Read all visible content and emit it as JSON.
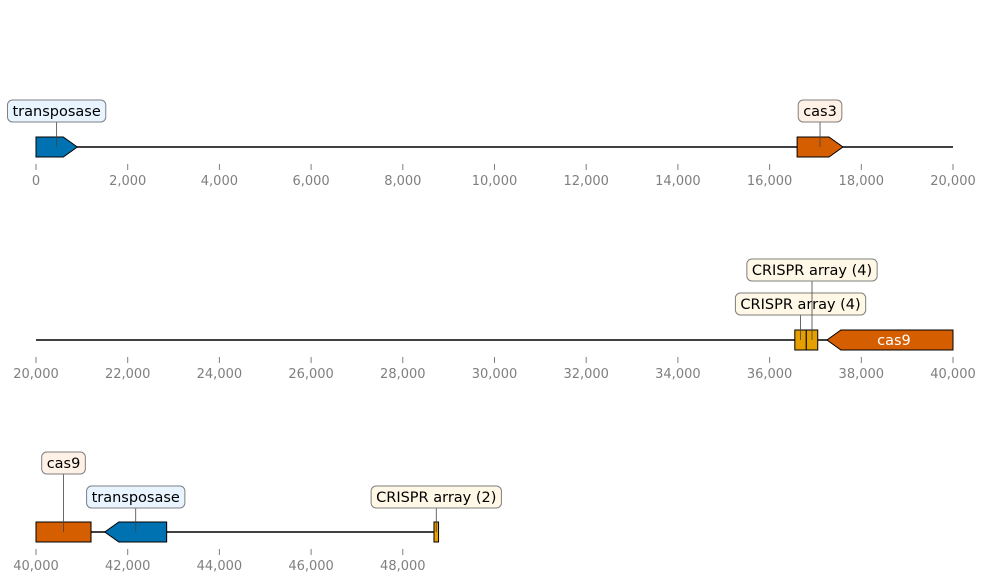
{
  "colors": {
    "blue": "#0072b2",
    "orange": "#d55e00",
    "gold": "#e69f00",
    "box_blue_bg": "#e8f4ff",
    "box_orange_bg": "#fff1e6",
    "box_gold_bg": "#fff8e6",
    "box_border": "#7f7f7f",
    "tick_text": "#7f7f7f",
    "axis_line": "#000000"
  },
  "chart_data": {
    "type": "genome-map",
    "tracks": [
      {
        "name": "track-1",
        "range": [
          0,
          20000
        ],
        "ticks": [
          0,
          2000,
          4000,
          6000,
          8000,
          10000,
          12000,
          14000,
          16000,
          18000,
          20000
        ],
        "tick_labels": [
          "0",
          "2,000",
          "4,000",
          "6,000",
          "8,000",
          "10,000",
          "12,000",
          "14,000",
          "16,000",
          "18,000",
          "20,000"
        ],
        "features": [
          {
            "id": "transposase-1",
            "start": 0,
            "end": 900,
            "strand": 1,
            "color": "blue",
            "label": "transposase",
            "label_inside": false
          },
          {
            "id": "cas3",
            "start": 16600,
            "end": 17600,
            "strand": 1,
            "color": "orange",
            "label": "cas3",
            "label_inside": false
          }
        ]
      },
      {
        "name": "track-2",
        "range": [
          20000,
          40000
        ],
        "ticks": [
          20000,
          22000,
          24000,
          26000,
          28000,
          30000,
          32000,
          34000,
          36000,
          38000,
          40000
        ],
        "tick_labels": [
          "20,000",
          "22,000",
          "24,000",
          "26,000",
          "28,000",
          "30,000",
          "32,000",
          "34,000",
          "36,000",
          "38,000",
          "40,000"
        ],
        "features": [
          {
            "id": "crispr-array-a",
            "start": 36550,
            "end": 36800,
            "strand": 0,
            "color": "gold",
            "label": "CRISPR array (4)",
            "label_inside": false
          },
          {
            "id": "crispr-array-b",
            "start": 36800,
            "end": 37050,
            "strand": 0,
            "color": "gold",
            "label": "CRISPR array (4)",
            "label_inside": false
          },
          {
            "id": "cas9-1",
            "start": 37250,
            "end": 40000,
            "strand": -1,
            "color": "orange",
            "label": "cas9",
            "label_inside": true
          }
        ]
      },
      {
        "name": "track-3",
        "range": [
          40000,
          60000
        ],
        "ticks": [
          40000,
          42000,
          44000,
          46000,
          48000
        ],
        "tick_labels": [
          "40,000",
          "42,000",
          "44,000",
          "46,000",
          "48,000"
        ],
        "features": [
          {
            "id": "cas9-2",
            "start": 40000,
            "end": 41200,
            "strand": 0,
            "color": "orange",
            "label": "cas9",
            "label_inside": false
          },
          {
            "id": "transposase-2",
            "start": 41500,
            "end": 42850,
            "strand": -1,
            "color": "blue",
            "label": "transposase",
            "label_inside": false
          },
          {
            "id": "crispr-array-c",
            "start": 48680,
            "end": 48780,
            "strand": 0,
            "color": "gold",
            "label": "CRISPR array (2)",
            "label_inside": false
          }
        ]
      }
    ]
  }
}
